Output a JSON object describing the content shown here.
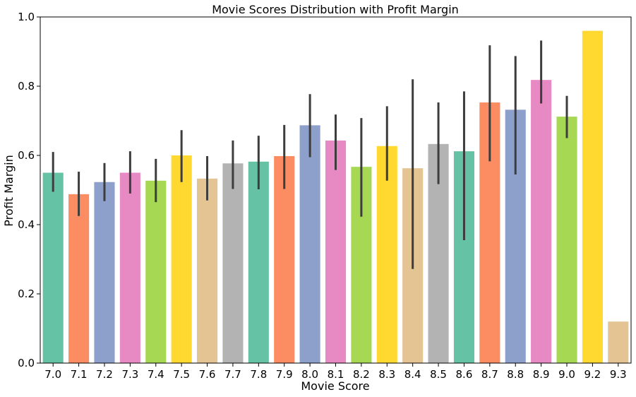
{
  "chart_data": {
    "type": "bar",
    "title": "Movie Scores Distribution with Profit Margin",
    "xlabel": "Movie Score",
    "ylabel": "Profit Margin",
    "ylim": [
      0,
      1.0
    ],
    "yticks": [
      "0.0",
      "0.2",
      "0.4",
      "0.6",
      "0.8",
      "1.0"
    ],
    "grid": false,
    "categories": [
      "7.0",
      "7.1",
      "7.2",
      "7.3",
      "7.4",
      "7.5",
      "7.6",
      "7.7",
      "7.8",
      "7.9",
      "8.0",
      "8.1",
      "8.2",
      "8.3",
      "8.4",
      "8.5",
      "8.6",
      "8.7",
      "8.8",
      "8.9",
      "9.0",
      "9.2",
      "9.3"
    ],
    "values": [
      0.55,
      0.488,
      0.523,
      0.55,
      0.527,
      0.6,
      0.533,
      0.577,
      0.582,
      0.598,
      0.687,
      0.643,
      0.567,
      0.627,
      0.563,
      0.633,
      0.612,
      0.753,
      0.732,
      0.818,
      0.712,
      0.96,
      0.12
    ],
    "error_low": [
      0.495,
      0.425,
      0.468,
      0.49,
      0.465,
      0.523,
      0.47,
      0.503,
      0.502,
      0.503,
      0.595,
      0.558,
      0.423,
      0.527,
      0.272,
      0.517,
      0.355,
      0.583,
      0.545,
      0.75,
      0.65,
      null,
      null
    ],
    "error_high": [
      0.61,
      0.553,
      0.578,
      0.612,
      0.59,
      0.673,
      0.598,
      0.643,
      0.657,
      0.688,
      0.777,
      0.718,
      0.708,
      0.742,
      0.82,
      0.753,
      0.785,
      0.918,
      0.887,
      0.932,
      0.772,
      null,
      null
    ],
    "colors": [
      "#66c2a5",
      "#fc8d62",
      "#8da0cb",
      "#e78ac3",
      "#a6d854",
      "#ffd92f",
      "#e5c494",
      "#b3b3b3"
    ]
  }
}
